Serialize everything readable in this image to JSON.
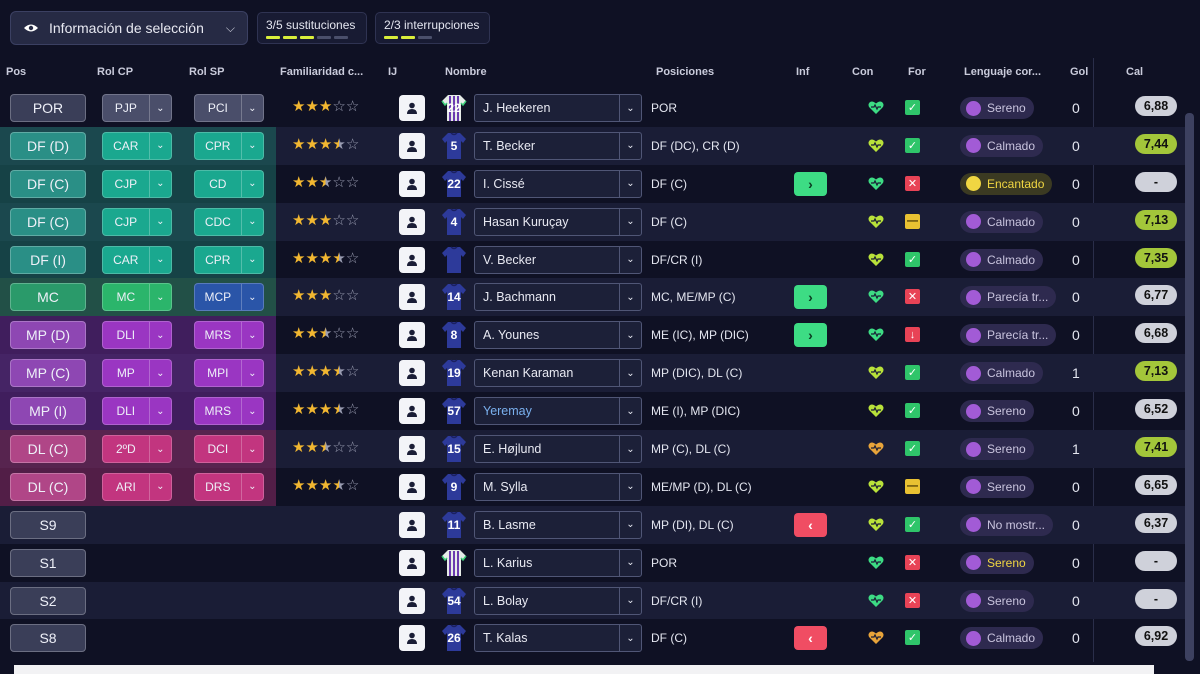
{
  "selection_button": {
    "label": "Información de selección",
    "icon": "eye-icon"
  },
  "counters": [
    {
      "label": "3/5 sustituciones",
      "used": 3,
      "total": 5
    },
    {
      "label": "2/3 interrupciones",
      "used": 2,
      "total": 3
    }
  ],
  "headers": {
    "pos": "Pos",
    "rol_cp": "Rol CP",
    "rol_sp": "Rol SP",
    "familiaridad": "Familiaridad c...",
    "ij": "IJ",
    "nombre": "Nombre",
    "posiciones": "Posiciones",
    "inf": "Inf",
    "con": "Con",
    "for": "For",
    "lenguaje": "Lenguaje cor...",
    "gol": "Gol",
    "cal": "Cal"
  },
  "rows": [
    {
      "pos": "POR",
      "rol_cp": "PJP",
      "rol_sp": "PCI",
      "stars": 3,
      "shirt_num": "22",
      "kit": "gk",
      "name": "J. Heekeren",
      "positions": "POR",
      "inf": "",
      "con": "green",
      "form": "ok",
      "mood": "Sereno",
      "mood_color": "purple",
      "goals": "0",
      "rating": "6,88",
      "rating_color": "gray",
      "group": "gk"
    },
    {
      "pos": "DF (D)",
      "rol_cp": "CAR",
      "rol_sp": "CPR",
      "stars": 3.5,
      "shirt_num": "5",
      "kit": "blue",
      "name": "T. Becker",
      "positions": "DF (DC), CR (D)",
      "inf": "",
      "con": "lime",
      "form": "ok",
      "mood": "Calmado",
      "mood_color": "purple",
      "goals": "0",
      "rating": "7,44",
      "rating_color": "green",
      "group": "def"
    },
    {
      "pos": "DF (C)",
      "rol_cp": "CJP",
      "rol_sp": "CD",
      "stars": 2.5,
      "shirt_num": "22",
      "kit": "blue",
      "name": "I. Cissé",
      "positions": "DF (C)",
      "inf": "up",
      "con": "green",
      "form": "bad",
      "mood": "Encantado",
      "mood_color": "yellow",
      "goals": "0",
      "rating": "-",
      "rating_color": "dash",
      "group": "def"
    },
    {
      "pos": "DF (C)",
      "rol_cp": "CJP",
      "rol_sp": "CDC",
      "stars": 3,
      "shirt_num": "4",
      "kit": "blue",
      "name": "Hasan Kuruçay",
      "positions": "DF (C)",
      "inf": "",
      "con": "lime",
      "form": "mid",
      "mood": "Calmado",
      "mood_color": "purple",
      "goals": "0",
      "rating": "7,13",
      "rating_color": "green",
      "group": "def"
    },
    {
      "pos": "DF (I)",
      "rol_cp": "CAR",
      "rol_sp": "CPR",
      "stars": 3.5,
      "shirt_num": "",
      "kit": "blue",
      "name": "V. Becker",
      "positions": "DF/CR (I)",
      "inf": "",
      "con": "lime",
      "form": "ok",
      "mood": "Calmado",
      "mood_color": "purple",
      "goals": "0",
      "rating": "7,35",
      "rating_color": "green",
      "group": "def"
    },
    {
      "pos": "MC",
      "rol_cp": "MC",
      "rol_sp": "MCP",
      "stars": 3,
      "shirt_num": "14",
      "kit": "blue",
      "name": "J. Bachmann",
      "positions": "MC, ME/MP (C)",
      "inf": "up",
      "con": "green",
      "form": "bad",
      "mood": "Parecía tr...",
      "mood_color": "purple",
      "goals": "0",
      "rating": "6,77",
      "rating_color": "gray",
      "group": "mc"
    },
    {
      "pos": "MP (D)",
      "rol_cp": "DLI",
      "rol_sp": "MRS",
      "stars": 2.5,
      "shirt_num": "8",
      "kit": "blue",
      "name": "A. Younes",
      "positions": "ME (IC), MP (DIC)",
      "inf": "up",
      "con": "green",
      "form": "bad2",
      "mood": "Parecía tr...",
      "mood_color": "purple",
      "goals": "0",
      "rating": "6,68",
      "rating_color": "gray",
      "group": "mid"
    },
    {
      "pos": "MP (C)",
      "rol_cp": "MP",
      "rol_sp": "MPI",
      "stars": 3.5,
      "shirt_num": "19",
      "kit": "blue",
      "name": "Kenan Karaman",
      "positions": "MP (DIC), DL (C)",
      "inf": "",
      "con": "lime",
      "form": "ok",
      "mood": "Calmado",
      "mood_color": "purple",
      "goals": "1",
      "rating": "7,13",
      "rating_color": "green",
      "group": "mid"
    },
    {
      "pos": "MP (I)",
      "rol_cp": "DLI",
      "rol_sp": "MRS",
      "stars": 3.5,
      "shirt_num": "57",
      "kit": "blue",
      "name": "Yeremay",
      "name_link": true,
      "positions": "ME (I), MP (DIC)",
      "inf": "",
      "con": "lime",
      "form": "ok",
      "mood": "Sereno",
      "mood_color": "purple",
      "goals": "0",
      "rating": "6,52",
      "rating_color": "gray",
      "group": "mid"
    },
    {
      "pos": "DL (C)",
      "rol_cp": "2ºD",
      "rol_sp": "DCI",
      "stars": 2.5,
      "shirt_num": "15",
      "kit": "blue",
      "name": "E. Højlund",
      "positions": "MP (C), DL (C)",
      "inf": "",
      "con": "orange",
      "form": "ok",
      "mood": "Sereno",
      "mood_color": "purple",
      "goals": "1",
      "rating": "7,41",
      "rating_color": "green",
      "group": "att"
    },
    {
      "pos": "DL (C)",
      "rol_cp": "ARI",
      "rol_sp": "DRS",
      "stars": 3.5,
      "shirt_num": "9",
      "kit": "blue",
      "name": "M. Sylla",
      "positions": "ME/MP (D), DL (C)",
      "inf": "",
      "con": "lime",
      "form": "mid",
      "mood": "Sereno",
      "mood_color": "purple",
      "goals": "0",
      "rating": "6,65",
      "rating_color": "gray",
      "group": "att"
    },
    {
      "pos": "S9",
      "shirt_num": "11",
      "kit": "blue",
      "name": "B. Lasme",
      "positions": "MP (DI), DL (C)",
      "inf": "down",
      "con": "lime",
      "form": "ok",
      "mood": "No mostr...",
      "mood_color": "purple",
      "goals": "0",
      "rating": "6,37",
      "rating_color": "gray",
      "group": "sub"
    },
    {
      "pos": "S1",
      "shirt_num": "",
      "kit": "gk",
      "name": "L. Karius",
      "positions": "POR",
      "inf": "",
      "con": "green",
      "form": "bad",
      "mood": "Sereno",
      "mood_color": "yellowtext",
      "goals": "0",
      "rating": "-",
      "rating_color": "dash",
      "group": "sub"
    },
    {
      "pos": "S2",
      "shirt_num": "54",
      "kit": "blue",
      "name": "L. Bolay",
      "positions": "DF/CR (I)",
      "inf": "",
      "con": "green",
      "form": "bad",
      "mood": "Sereno",
      "mood_color": "purple",
      "goals": "0",
      "rating": "-",
      "rating_color": "dash",
      "group": "sub"
    },
    {
      "pos": "S8",
      "shirt_num": "26",
      "kit": "blue",
      "name": "T. Kalas",
      "positions": "DF (C)",
      "inf": "down",
      "con": "orange",
      "form": "ok",
      "mood": "Calmado",
      "mood_color": "purple",
      "goals": "0",
      "rating": "6,92",
      "rating_color": "gray",
      "group": "sub"
    }
  ],
  "colors": {
    "gk": "#3a3e58",
    "def": "#1d6b62",
    "mc": "#2a7a55",
    "mid": "#6a2a8c",
    "att": "#8a2a65",
    "role_def": "#1aa88f",
    "role_mc": "#2bb56b",
    "role_mid": "#9a36c2",
    "role_att": "#c2357f",
    "role_gk": "#4a4e6a",
    "role_mcp": "#2a55a8"
  }
}
